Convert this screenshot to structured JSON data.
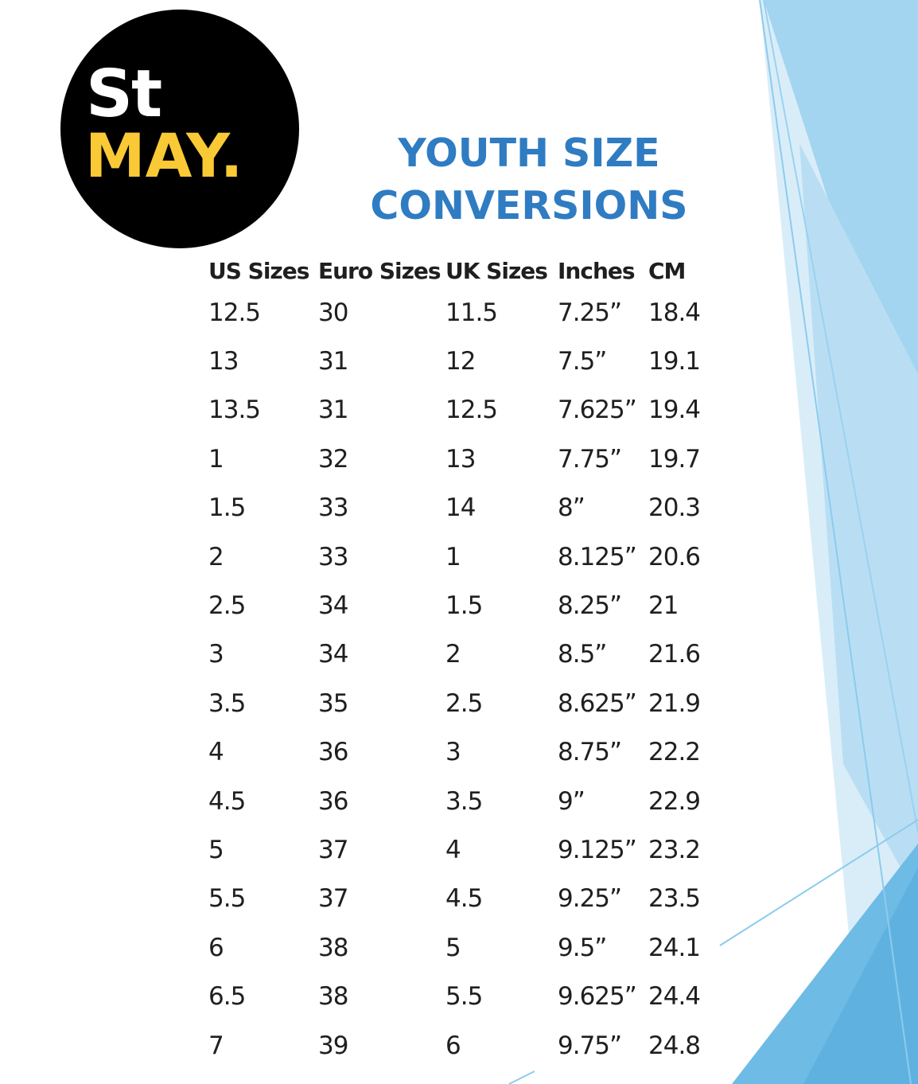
{
  "logo": {
    "line1": "St",
    "line2": "MAY.",
    "colors": {
      "background": "#000000",
      "line1": "#ffffff",
      "line2": "#f9c936"
    }
  },
  "title": {
    "line1": "YOUTH SIZE",
    "line2": "CONVERSIONS",
    "color": "#2f7cc2"
  },
  "table": {
    "headers": [
      "US Sizes",
      "Euro Sizes",
      "UK Sizes",
      "Inches",
      "CM"
    ],
    "rows": [
      [
        "12.5",
        "30",
        "11.5",
        "7.25”",
        "18.4"
      ],
      [
        "13",
        "31",
        "12",
        "7.5”",
        "19.1"
      ],
      [
        "13.5",
        "31",
        "12.5",
        "7.625”",
        "19.4"
      ],
      [
        "1",
        "32",
        "13",
        "7.75”",
        "19.7"
      ],
      [
        "1.5",
        "33",
        "14",
        "8”",
        "20.3"
      ],
      [
        "2",
        "33",
        "1",
        "8.125”",
        "20.6"
      ],
      [
        "2.5",
        "34",
        "1.5",
        "8.25”",
        "21"
      ],
      [
        "3",
        "34",
        "2",
        "8.5”",
        "21.6"
      ],
      [
        "3.5",
        "35",
        "2.5",
        "8.625”",
        "21.9"
      ],
      [
        "4",
        "36",
        "3",
        "8.75”",
        "22.2"
      ],
      [
        "4.5",
        "36",
        "3.5",
        "9”",
        "22.9"
      ],
      [
        "5",
        "37",
        "4",
        "9.125”",
        "23.2"
      ],
      [
        "5.5",
        "37",
        "4.5",
        "9.25”",
        "23.5"
      ],
      [
        "6",
        "38",
        "5",
        "9.5”",
        "24.1"
      ],
      [
        "6.5",
        "38",
        "5.5",
        "9.625”",
        "24.4"
      ],
      [
        "7",
        "39",
        "6",
        "9.75”",
        "24.8"
      ]
    ]
  },
  "decor_colors": {
    "light": "#d7ecf8",
    "mid": "#a9d6f0",
    "dark": "#6fbde6",
    "line": "#8ccbee"
  }
}
